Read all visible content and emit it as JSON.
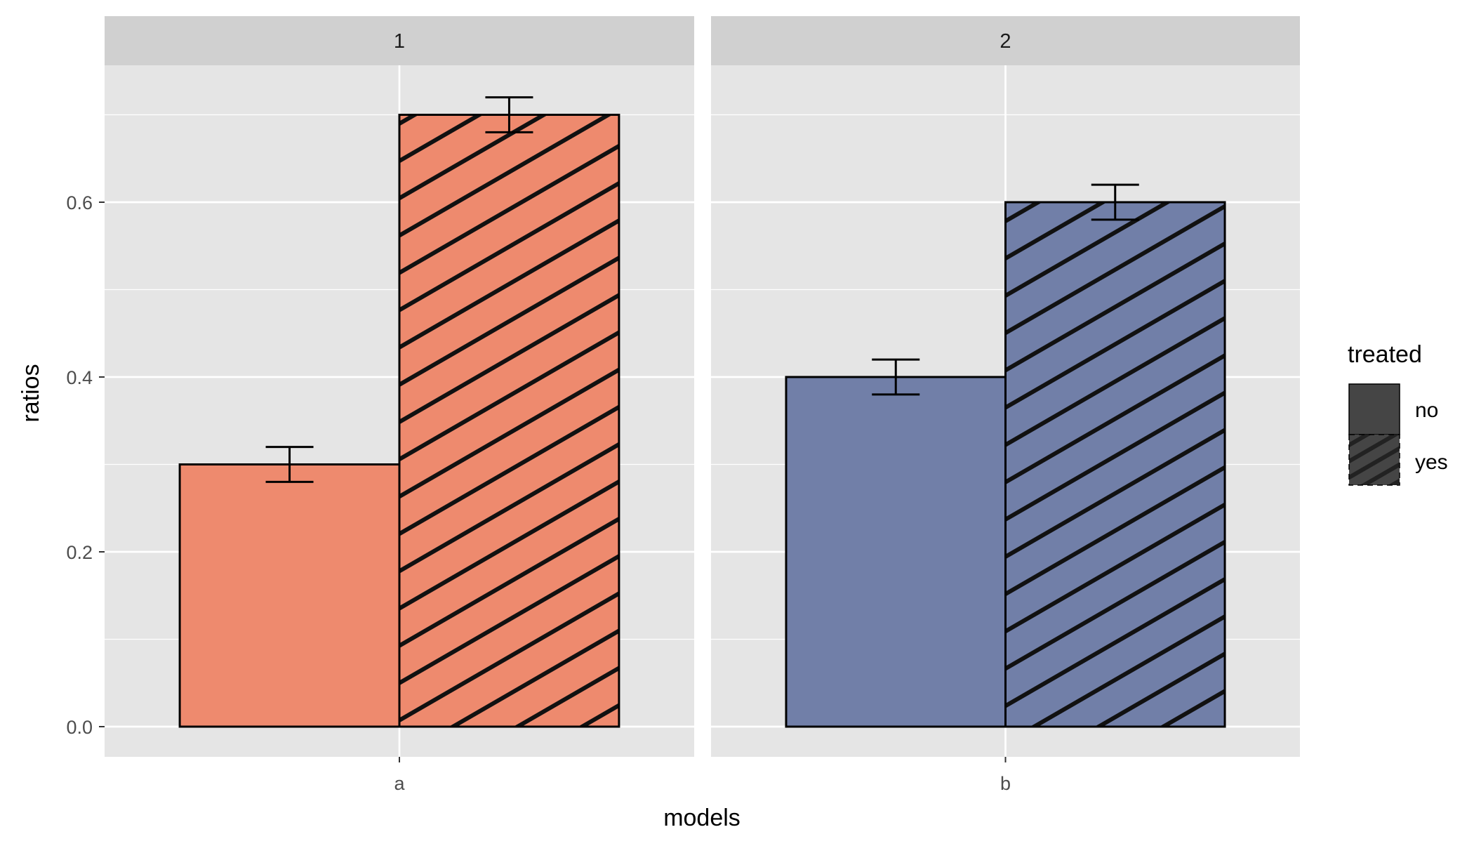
{
  "chart_data": {
    "type": "bar",
    "xlabel": "models",
    "ylabel": "ratios",
    "ylim": [
      -0.035,
      0.76
    ],
    "yticks": [
      "0.0",
      "0.2",
      "0.4",
      "0.6"
    ],
    "ytick_values": [
      0,
      0.2,
      0.4,
      0.6
    ],
    "grid": true,
    "legend": {
      "title": "treated",
      "placement": "right",
      "entries": [
        "no",
        "yes"
      ]
    },
    "panels": [
      {
        "strip": "1",
        "category": "a",
        "color": "#EE8A6E",
        "bars": [
          {
            "treated": "no",
            "value": 0.3,
            "err_low": 0.28,
            "err_high": 0.32
          },
          {
            "treated": "yes",
            "value": 0.7,
            "err_low": 0.68,
            "err_high": 0.72
          }
        ]
      },
      {
        "strip": "2",
        "category": "b",
        "color": "#717FA8",
        "bars": [
          {
            "treated": "no",
            "value": 0.4,
            "err_low": 0.38,
            "err_high": 0.42
          },
          {
            "treated": "yes",
            "value": 0.6,
            "err_low": 0.58,
            "err_high": 0.62
          }
        ]
      }
    ]
  }
}
